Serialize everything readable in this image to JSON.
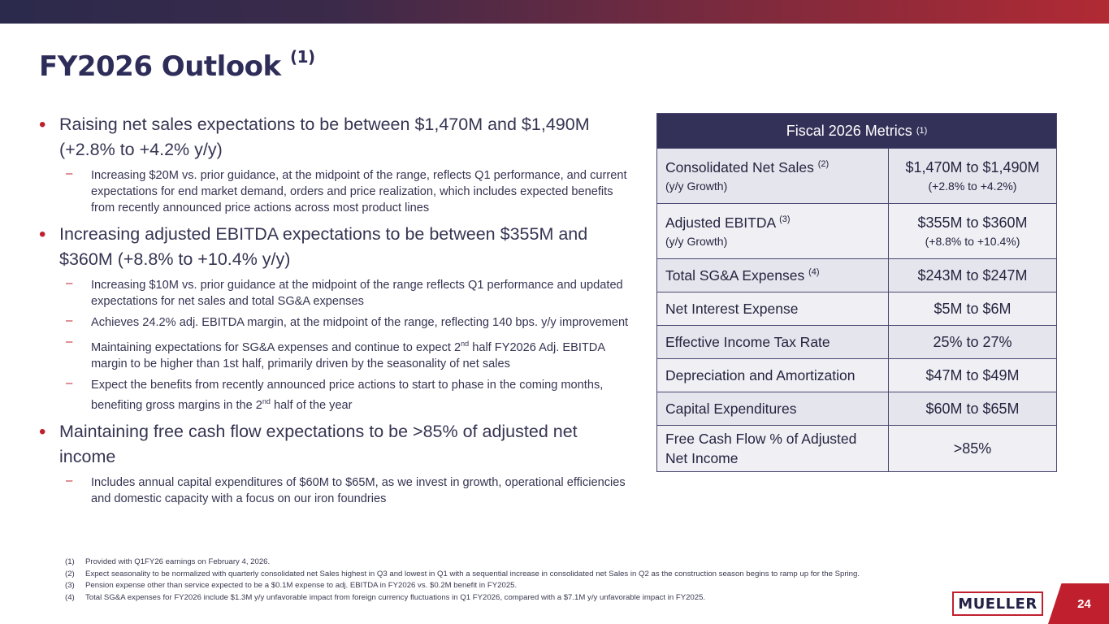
{
  "title": "FY2026 Outlook",
  "title_note": "(1)",
  "bullets": [
    {
      "text": "Raising net sales expectations to be between $1,470M and $1,490M (+2.8% to +4.2% y/y)",
      "subs": [
        {
          "text": "Increasing $20M vs. prior guidance, at the midpoint of the range, reflects Q1 performance, and current expectations for end market demand, orders and price realization, which includes expected benefits from recently announced price actions across most product lines"
        }
      ]
    },
    {
      "text": "Increasing adjusted EBITDA expectations to be between $355M and $360M (+8.8% to +10.4% y/y)",
      "subs": [
        {
          "text": "Increasing $10M vs. prior guidance at the midpoint of the range reflects Q1 performance and updated expectations for net sales and total SG&A expenses"
        },
        {
          "text": "Achieves 24.2% adj. EBITDA margin, at the midpoint of the range, reflecting 140 bps. y/y improvement"
        },
        {
          "pre": "Maintaining expectations for SG&A expenses and continue to expect 2",
          "sup": "nd",
          "post": " half FY2026 Adj. EBITDA margin to be higher than 1st half, primarily driven by the seasonality of net sales"
        },
        {
          "pre": "Expect the benefits from recently announced price actions to start to phase in the coming months, benefiting gross margins in the 2",
          "sup": "nd",
          "post": " half of the year"
        }
      ]
    },
    {
      "text": "Maintaining free cash flow expectations to be >85% of adjusted net income",
      "subs": [
        {
          "text": "Includes annual capital expenditures of $60M to $65M, as we invest in growth, operational efficiencies and domestic capacity with a focus on our iron foundries"
        }
      ]
    }
  ],
  "table": {
    "header": "Fiscal 2026 Metrics",
    "header_note": "(1)",
    "rows": [
      {
        "label": "Consolidated Net Sales",
        "note": "(2)",
        "sublabel": "(y/y Growth)",
        "value": "$1,470M to $1,490M",
        "subvalue": "(+2.8% to +4.2%)"
      },
      {
        "label": "Adjusted EBITDA",
        "note": "(3)",
        "sublabel": "(y/y Growth)",
        "value": "$355M to $360M",
        "subvalue": "(+8.8% to +10.4%)"
      },
      {
        "label": "Total SG&A Expenses",
        "note": "(4)",
        "value": "$243M to $247M"
      },
      {
        "label": "Net Interest Expense",
        "value": "$5M to $6M"
      },
      {
        "label": "Effective Income Tax Rate",
        "value": "25% to 27%"
      },
      {
        "label": "Depreciation and Amortization",
        "value": "$47M to $49M"
      },
      {
        "label": "Capital Expenditures",
        "value": "$60M to $65M"
      },
      {
        "label": "Free Cash Flow % of Adjusted Net Income",
        "value": ">85%"
      }
    ]
  },
  "footnotes": [
    {
      "num": "(1)",
      "text": "Provided with Q1FY26 earnings on February 4, 2026."
    },
    {
      "num": "(2)",
      "text": "Expect seasonality to be normalized with quarterly consolidated net Sales highest in Q3 and lowest in Q1 with a sequential increase in consolidated net Sales in Q2 as the construction season begins to ramp up for the Spring."
    },
    {
      "num": "(3)",
      "text": "Pension expense other than service expected to be a $0.1M expense to adj. EBITDA in FY2026 vs. $0.2M benefit in FY2025."
    },
    {
      "num": "(4)",
      "text": "Total SG&A expenses for FY2026 include $1.3M y/y unfavorable impact from foreign currency fluctuations in Q1 FY2026, compared with a $7.1M y/y unfavorable impact in FY2025."
    }
  ],
  "logo": "MUELLER",
  "page_number": "24",
  "colors": {
    "navy": "#2e2d5a",
    "red": "#c0202e",
    "table_header": "#333158",
    "row_fill": "#e5e5ed"
  }
}
